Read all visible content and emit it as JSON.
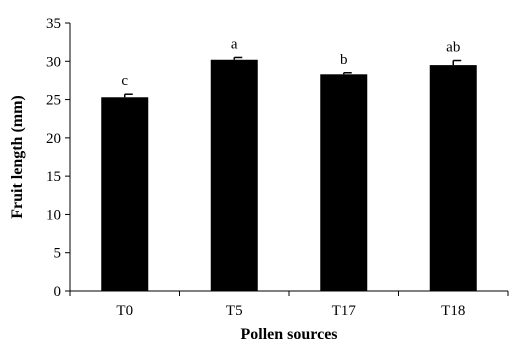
{
  "chart_data": {
    "type": "bar",
    "categories": [
      "T0",
      "T5",
      "T17",
      "T18"
    ],
    "values": [
      25.3,
      30.2,
      28.3,
      29.5
    ],
    "errors": [
      0.4,
      0.3,
      0.2,
      0.6
    ],
    "significance_labels": [
      "c",
      "a",
      "b",
      "ab"
    ],
    "title": "",
    "xlabel": "Pollen sources",
    "ylabel": "Fruit length (mm)",
    "ylim": [
      0,
      35
    ],
    "yticks": [
      0,
      5,
      10,
      15,
      20,
      25,
      30,
      35
    ],
    "grid": false,
    "legend": "none",
    "bar_color": "#000000"
  }
}
